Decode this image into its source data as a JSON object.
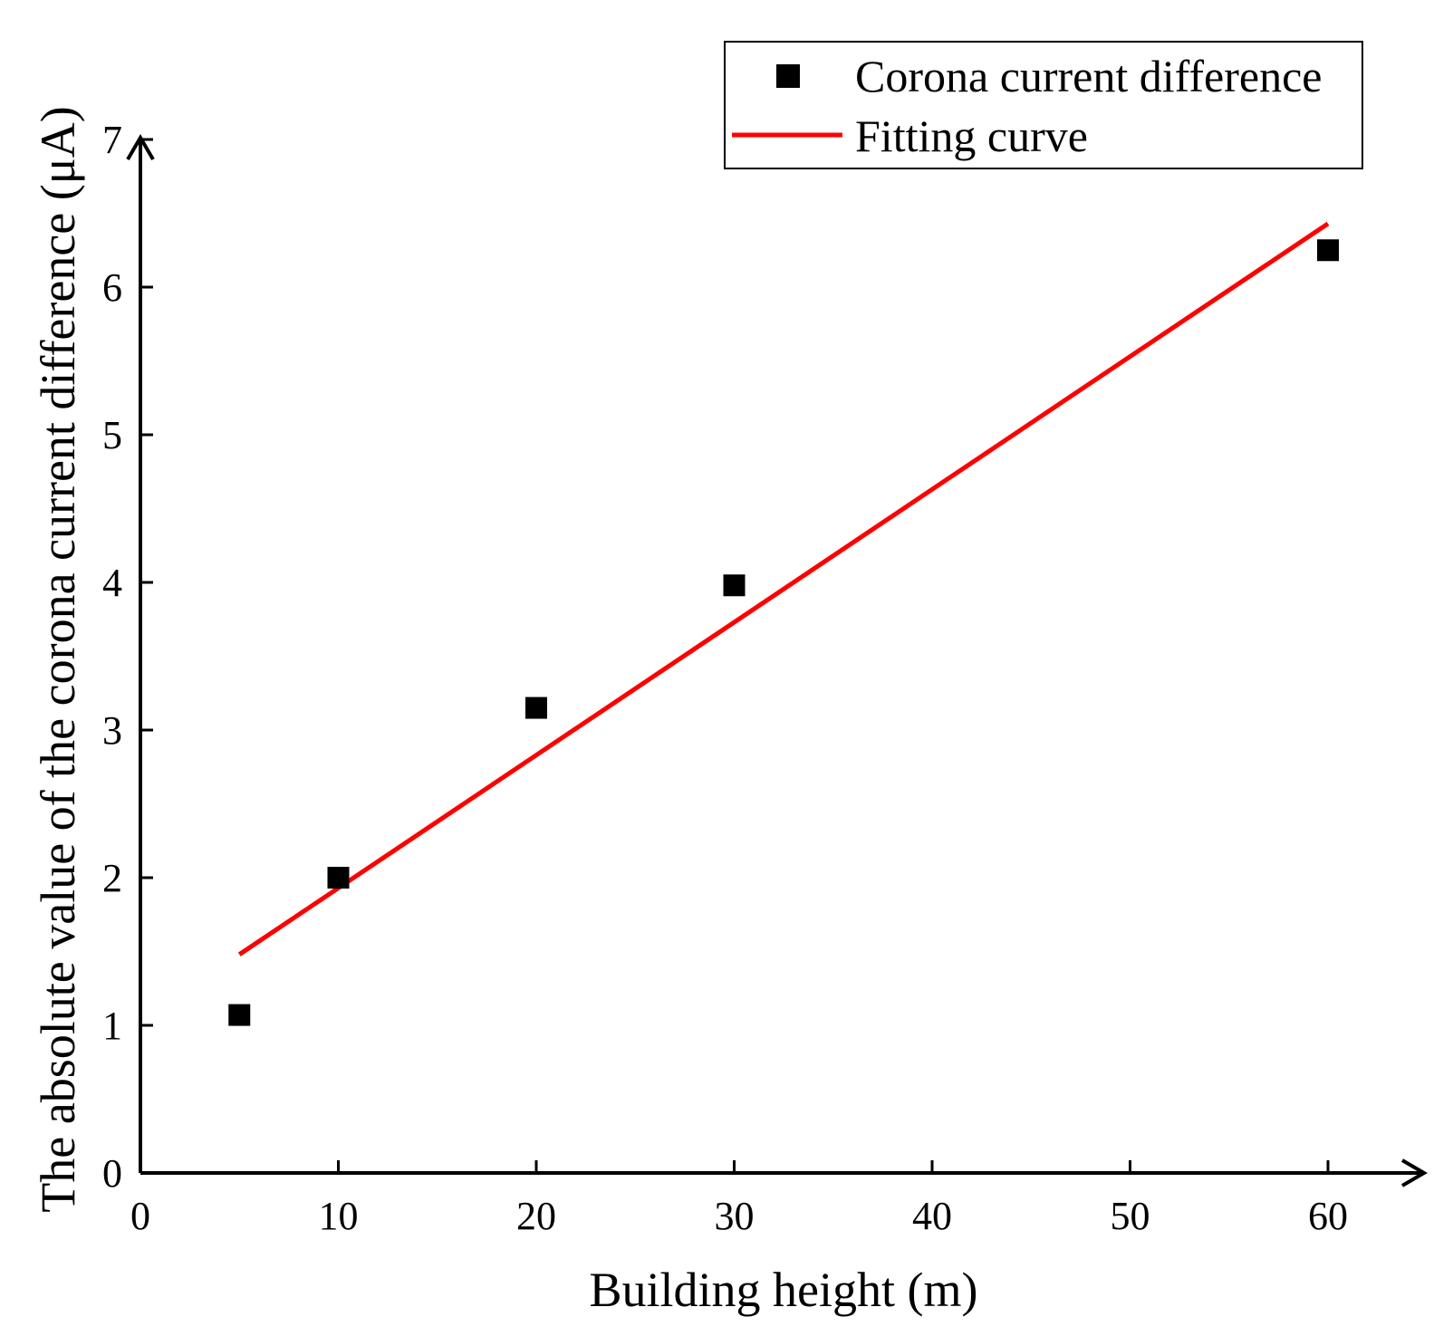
{
  "chart_data": {
    "type": "scatter",
    "title": "",
    "xlabel": "Building height (m)",
    "ylabel": "The absolute value of the corona current difference (μA)",
    "xlim": [
      0,
      65
    ],
    "ylim": [
      0,
      7
    ],
    "xticks": [
      0,
      10,
      20,
      30,
      40,
      50,
      60
    ],
    "yticks": [
      0,
      1,
      2,
      3,
      4,
      5,
      6,
      7
    ],
    "grid": false,
    "legend_position": "top-right",
    "series": [
      {
        "name": "Corona current difference",
        "kind": "scatter",
        "marker": "square",
        "color": "#000000",
        "x": [
          5,
          10,
          20,
          30,
          60
        ],
        "y": [
          1.07,
          2.0,
          3.15,
          3.98,
          6.25
        ]
      },
      {
        "name": "Fitting curve",
        "kind": "line",
        "color": "#ff0000",
        "x": [
          5,
          60
        ],
        "y": [
          1.48,
          6.43
        ]
      }
    ]
  }
}
